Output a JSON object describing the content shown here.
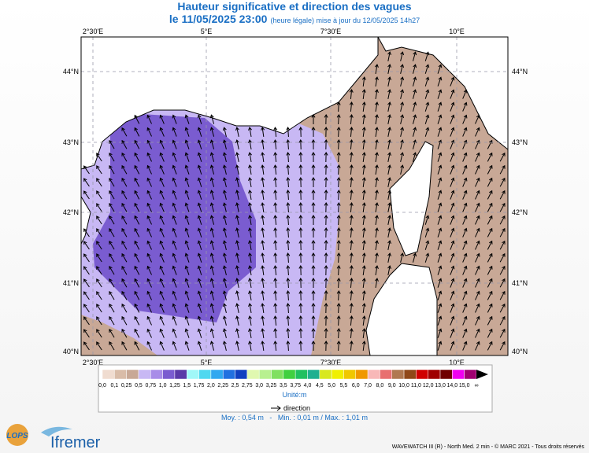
{
  "header": {
    "title": "Hauteur significative et direction des vagues",
    "date": "le 11/05/2025 23:00",
    "note": "(heure légale) mise à jour du 12/05/2025 14h27"
  },
  "map": {
    "lon_labels": [
      "2°30'E",
      "5°E",
      "7°30'E",
      "10°E"
    ],
    "lat_labels": [
      "44°N",
      "43°N",
      "42°N",
      "41°N",
      "40°N"
    ]
  },
  "legend": {
    "labels": [
      "0,0",
      "0,1",
      "0,25",
      "0,5",
      "0,75",
      "1,0",
      "1,25",
      "1,5",
      "1,75",
      "2,0",
      "2,25",
      "2,5",
      "2,75",
      "3,0",
      "3,25",
      "3,5",
      "3,75",
      "4,0",
      "4,5",
      "5,0",
      "5,5",
      "6,0",
      "7,0",
      "8,0",
      "9,0",
      "10,0",
      "11,0",
      "12,0",
      "13,0",
      "14,0",
      "15,0",
      "∞"
    ],
    "colors": [
      "#f0dcd0",
      "#d9bca8",
      "#c8a896",
      "#c8b8f4",
      "#a88ce8",
      "#7a5cd0",
      "#5a3aa8",
      "#a0f8f8",
      "#50d8f0",
      "#30a8f0",
      "#2070e0",
      "#1040c0",
      "#e0f8b0",
      "#b8f090",
      "#80e060",
      "#40d040",
      "#20c060",
      "#20b090",
      "#d8e820",
      "#f0f000",
      "#f0c800",
      "#f09800",
      "#f8b8b8",
      "#e87070",
      "#b07850",
      "#904818",
      "#d00000",
      "#a00000",
      "#700000",
      "#f000f0",
      "#a00070"
    ],
    "unit": "Unité:m",
    "direction": "direction"
  },
  "stats": "Moy. : 0,54 m   -   Min. : 0,01 m / Max. : 1,01 m",
  "logos": {
    "lops": "LOPS",
    "ifremer": "Ifremer"
  },
  "footer": "WAVEWATCH III (R) - North Med. 2 min - © MARC 2021 - Tous droits réservés"
}
